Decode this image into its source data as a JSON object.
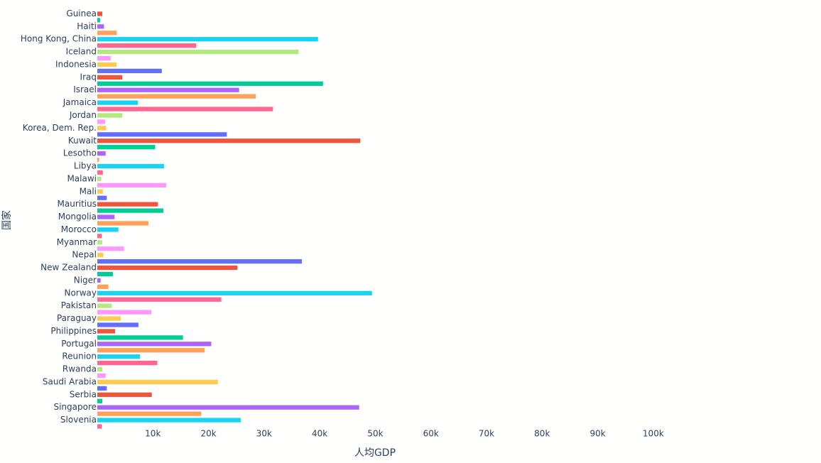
{
  "chart_data": {
    "type": "bar",
    "orientation": "horizontal",
    "x_label": "人均GDP",
    "y_label": "国家",
    "categories": [
      "Guinea",
      null,
      "Haiti",
      null,
      "Hong Kong, China",
      null,
      "Iceland",
      null,
      "Indonesia",
      null,
      "Iraq",
      null,
      "Israel",
      null,
      "Jamaica",
      null,
      "Jordan",
      null,
      "Korea, Dem. Rep.",
      null,
      "Kuwait",
      null,
      "Lesotho",
      null,
      "Libya",
      null,
      "Malawi",
      null,
      "Mali",
      null,
      "Mauritius",
      null,
      "Mongolia",
      null,
      "Morocco",
      null,
      "Myanmar",
      null,
      "Nepal",
      null,
      "New Zealand",
      null,
      "Niger",
      null,
      "Norway",
      null,
      "Pakistan",
      null,
      "Paraguay",
      null,
      "Philippines",
      null,
      "Portugal",
      null,
      "Reunion",
      null,
      "Rwanda",
      null,
      "Saudi Arabia",
      null,
      "Serbia",
      null,
      "Singapore",
      null,
      "Slovenia",
      null
    ],
    "values": [
      900,
      500,
      1200,
      3500,
      39700,
      17800,
      36200,
      2400,
      3500,
      11600,
      4500,
      40600,
      25500,
      28500,
      7300,
      31600,
      4500,
      1400,
      1600,
      23300,
      47300,
      10400,
      1500,
      300,
      12000,
      1000,
      700,
      12400,
      1000,
      1700,
      10900,
      11900,
      3100,
      9200,
      3800,
      800,
      900,
      4800,
      1100,
      36800,
      25200,
      2800,
      600,
      2000,
      49400,
      22300,
      2600,
      9700,
      4200,
      7400,
      3200,
      15400,
      20500,
      19300,
      7700,
      10800,
      900,
      1500,
      21700,
      1700,
      9800,
      900,
      47100,
      18700,
      25800,
      800
    ],
    "colors": [
      "#EF553B",
      "#00cc96",
      "#ab63fa",
      "#FFA15A",
      "#19d3f3",
      "#FF6692",
      "#B6E880",
      "#FF97FF",
      "#FECB52",
      "#636efa",
      "#EF553B",
      "#00cc96",
      "#ab63fa",
      "#FFA15A",
      "#19d3f3",
      "#FF6692",
      "#B6E880",
      "#FF97FF",
      "#FECB52",
      "#636efa",
      "#EF553B",
      "#00cc96",
      "#ab63fa",
      "#FFA15A",
      "#19d3f3",
      "#FF6692",
      "#B6E880",
      "#FF97FF",
      "#FECB52",
      "#636efa",
      "#EF553B",
      "#00cc96",
      "#ab63fa",
      "#FFA15A",
      "#19d3f3",
      "#FF6692",
      "#B6E880",
      "#FF97FF",
      "#FECB52",
      "#636efa",
      "#EF553B",
      "#00cc96",
      "#ab63fa",
      "#FFA15A",
      "#19d3f3",
      "#FF6692",
      "#B6E880",
      "#FF97FF",
      "#FECB52",
      "#636efa",
      "#EF553B",
      "#00cc96",
      "#ab63fa",
      "#FFA15A",
      "#19d3f3",
      "#FF6692",
      "#B6E880",
      "#FF97FF",
      "#FECB52",
      "#636efa",
      "#EF553B",
      "#00cc96",
      "#ab63fa",
      "#FFA15A",
      "#19d3f3",
      "#FF6692"
    ],
    "xlim": [
      0,
      105000
    ],
    "xticks": [
      {
        "value": 10000,
        "label": "10k"
      },
      {
        "value": 20000,
        "label": "20k"
      },
      {
        "value": 30000,
        "label": "30k"
      },
      {
        "value": 40000,
        "label": "40k"
      },
      {
        "value": 50000,
        "label": "50k"
      },
      {
        "value": 60000,
        "label": "60k"
      },
      {
        "value": 70000,
        "label": "70k"
      },
      {
        "value": 80000,
        "label": "80k"
      },
      {
        "value": 90000,
        "label": "90k"
      },
      {
        "value": 100000,
        "label": "100k"
      }
    ]
  }
}
